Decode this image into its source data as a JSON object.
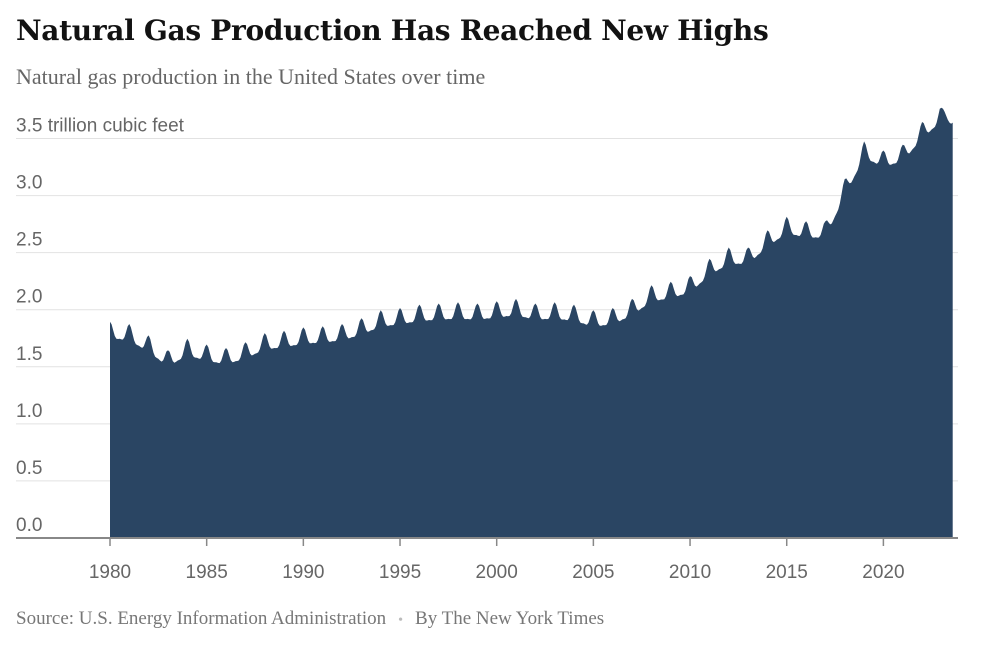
{
  "chart_data": {
    "type": "area",
    "title": "Natural Gas Production Has Reached New Highs",
    "subtitle": "Natural gas production in the United States over time",
    "ylabel": "trillion cubic feet",
    "xlabel": "",
    "xlim": [
      1980,
      2023.6
    ],
    "ylim": [
      0,
      3.75
    ],
    "y_ticks": [
      0.0,
      0.5,
      1.0,
      1.5,
      2.0,
      2.5,
      3.0,
      3.5
    ],
    "y_tick_labels": [
      "0.0",
      "0.5",
      "1.0",
      "1.5",
      "2.0",
      "2.5",
      "3.0",
      "3.5 trillion cubic feet"
    ],
    "x_ticks": [
      1980,
      1985,
      1990,
      1995,
      2000,
      2005,
      2010,
      2015,
      2020
    ],
    "x_tick_labels": [
      "1980",
      "1985",
      "1990",
      "1995",
      "2000",
      "2005",
      "2010",
      "2015",
      "2020"
    ],
    "grid": true,
    "fill_color": "#2a4563",
    "series": [
      {
        "x": [
          1980,
          1981,
          1982,
          1983,
          1984,
          1985,
          1986,
          1987,
          1988,
          1989,
          1990,
          1991,
          1992,
          1993,
          1994,
          1995,
          1996,
          1997,
          1998,
          1999,
          2000,
          2001,
          2002,
          2003,
          2004,
          2005,
          2006,
          2007,
          2008,
          2009,
          2010,
          2011,
          2012,
          2013,
          2014,
          2015,
          2016,
          2017,
          2018,
          2019,
          2020,
          2021,
          2022,
          2023
        ],
        "values": [
          1.8,
          1.78,
          1.68,
          1.55,
          1.65,
          1.6,
          1.57,
          1.62,
          1.7,
          1.72,
          1.75,
          1.76,
          1.78,
          1.83,
          1.9,
          1.92,
          1.95,
          1.96,
          1.97,
          1.96,
          1.98,
          2.0,
          1.96,
          1.97,
          1.95,
          1.9,
          1.92,
          2.0,
          2.12,
          2.15,
          2.2,
          2.35,
          2.45,
          2.45,
          2.6,
          2.72,
          2.68,
          2.68,
          3.05,
          3.38,
          3.3,
          3.35,
          3.55,
          3.7
        ]
      }
    ]
  },
  "footer": {
    "source": "Source: U.S. Energy Information Administration",
    "separator": "•",
    "byline": "By The New York Times"
  }
}
